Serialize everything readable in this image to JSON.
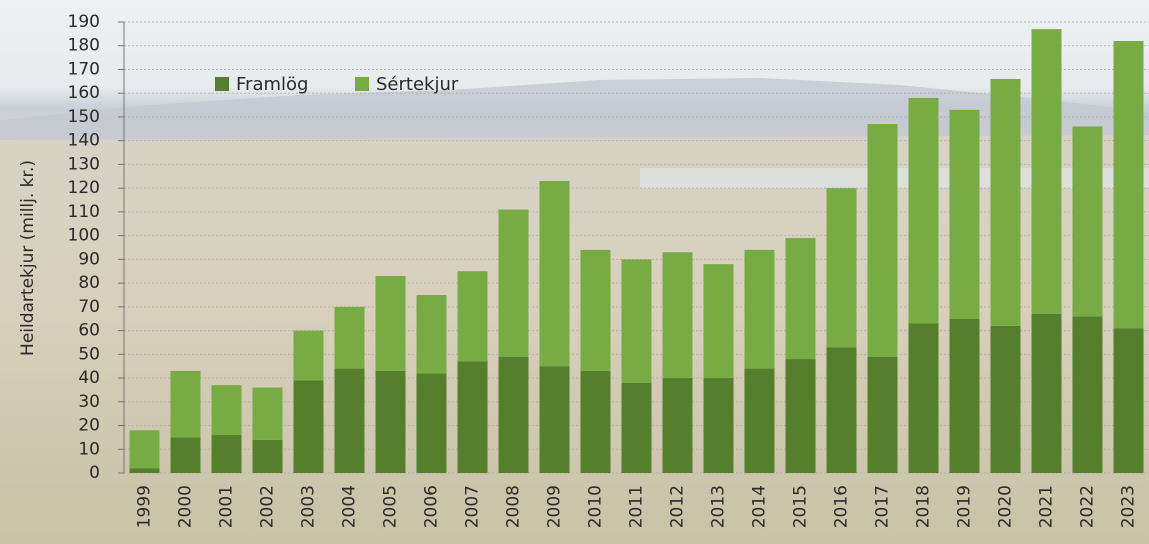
{
  "chart_data": {
    "type": "stacked_bar",
    "y_label": "Heildartekjur (millj. kr.)",
    "categories": [
      "1999",
      "2000",
      "2001",
      "2002",
      "2003",
      "2004",
      "2005",
      "2006",
      "2007",
      "2008",
      "2009",
      "2010",
      "2011",
      "2012",
      "2013",
      "2014",
      "2015",
      "2016",
      "2017",
      "2018",
      "2019",
      "2020",
      "2021",
      "2022",
      "2023"
    ],
    "series": [
      {
        "name": "Framlög",
        "color": "#557f2c",
        "values": [
          2,
          15,
          16,
          14,
          39,
          44,
          43,
          42,
          47,
          49,
          45,
          43,
          38,
          40,
          40,
          44,
          48,
          53,
          49,
          63,
          65,
          62,
          67,
          66,
          61
        ]
      },
      {
        "name": "Sértekjur",
        "color": "#79ab45",
        "values": [
          16,
          28,
          21,
          22,
          21,
          26,
          40,
          33,
          38,
          62,
          78,
          51,
          52,
          53,
          48,
          50,
          51,
          67,
          98,
          95,
          88,
          104,
          120,
          80,
          121
        ]
      }
    ],
    "ylim": [
      0,
      190
    ],
    "yticks": [
      0,
      10,
      20,
      30,
      40,
      50,
      60,
      70,
      80,
      90,
      100,
      110,
      120,
      130,
      140,
      150,
      160,
      170,
      180,
      190
    ],
    "grid": true,
    "legend": "top-left"
  }
}
